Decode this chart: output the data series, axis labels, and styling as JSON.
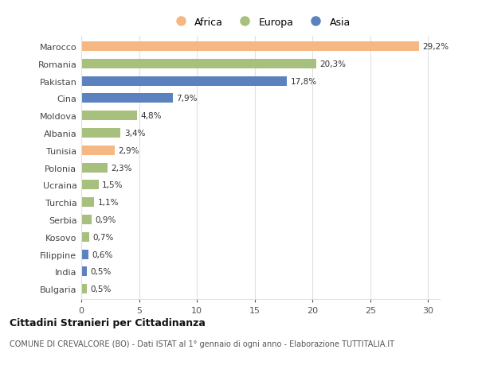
{
  "countries": [
    "Bulgaria",
    "India",
    "Filippine",
    "Kosovo",
    "Serbia",
    "Turchia",
    "Ucraina",
    "Polonia",
    "Tunisia",
    "Albania",
    "Moldova",
    "Cina",
    "Pakistan",
    "Romania",
    "Marocco"
  ],
  "values": [
    0.5,
    0.5,
    0.6,
    0.7,
    0.9,
    1.1,
    1.5,
    2.3,
    2.9,
    3.4,
    4.8,
    7.9,
    17.8,
    20.3,
    29.2
  ],
  "labels": [
    "0,5%",
    "0,5%",
    "0,6%",
    "0,7%",
    "0,9%",
    "1,1%",
    "1,5%",
    "2,3%",
    "2,9%",
    "3,4%",
    "4,8%",
    "7,9%",
    "17,8%",
    "20,3%",
    "29,2%"
  ],
  "colors": [
    "#a8c07e",
    "#5b82be",
    "#5b82be",
    "#a8c07e",
    "#a8c07e",
    "#a8c07e",
    "#a8c07e",
    "#a8c07e",
    "#f5b882",
    "#a8c07e",
    "#a8c07e",
    "#5b82be",
    "#5b82be",
    "#a8c07e",
    "#f5b882"
  ],
  "legend": [
    {
      "label": "Africa",
      "color": "#f5b882"
    },
    {
      "label": "Europa",
      "color": "#a8c07e"
    },
    {
      "label": "Asia",
      "color": "#5b82be"
    }
  ],
  "title1": "Cittadini Stranieri per Cittadinanza",
  "title2": "COMUNE DI CREVALCORE (BO) - Dati ISTAT al 1° gennaio di ogni anno - Elaborazione TUTTITALIA.IT",
  "xlim": [
    0,
    31
  ],
  "xticks": [
    0,
    5,
    10,
    15,
    20,
    25,
    30
  ],
  "background_color": "#ffffff",
  "grid_color": "#e0e0e0",
  "bar_height": 0.55
}
